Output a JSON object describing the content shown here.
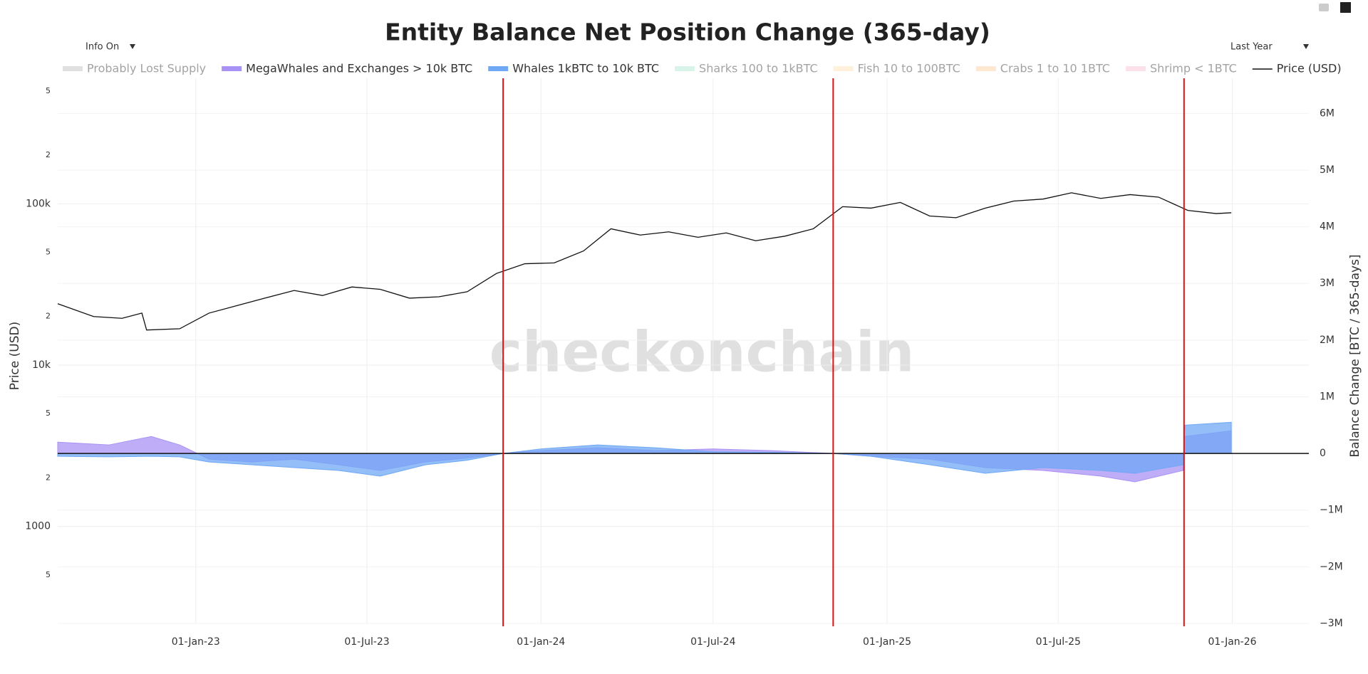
{
  "chart_data": {
    "type": "line",
    "title": "Entity Balance Net Position Change (365-day)",
    "watermark": "checkonchain",
    "info_dropdown": "Info On",
    "range_dropdown": "Last Year",
    "y_label": "Price (USD)",
    "y2_label": "Balance Change [BTC / 365-days]",
    "ylog": true,
    "ylim": [
      250,
      600000
    ],
    "yticks": [
      {
        "value": 500000,
        "label": "5"
      },
      {
        "value": 200000,
        "label": "2"
      },
      {
        "value": 100000,
        "label": "100k"
      },
      {
        "value": 50000,
        "label": "5"
      },
      {
        "value": 20000,
        "label": "2"
      },
      {
        "value": 10000,
        "label": "10k"
      },
      {
        "value": 5000,
        "label": "5"
      },
      {
        "value": 2000,
        "label": "2"
      },
      1000,
      {
        "value": 500,
        "label": "5"
      }
    ],
    "y2lim": [
      -3000000,
      6620000
    ],
    "y2ticks": [
      {
        "value": 6000000,
        "label": "6M"
      },
      {
        "value": 5000000,
        "label": "5M"
      },
      {
        "value": 4000000,
        "label": "4M"
      },
      {
        "value": 3000000,
        "label": "3M"
      },
      {
        "value": 2000000,
        "label": "2M"
      },
      {
        "value": 1000000,
        "label": "1M"
      },
      0,
      {
        "value": -1000000,
        "label": "−1M"
      },
      {
        "value": -2000000,
        "label": "−2M"
      },
      {
        "value": -3000000,
        "label": "−3M"
      }
    ],
    "xlim": [
      "2022-08-08",
      "2026-03-23"
    ],
    "xticks": [
      {
        "value": "2023-01-01",
        "label": "01-Jan-23"
      },
      {
        "value": "2023-07-01",
        "label": "01-Jul-23"
      },
      {
        "value": "2024-01-01",
        "label": "01-Jan-24"
      },
      {
        "value": "2024-07-01",
        "label": "01-Jul-24"
      },
      {
        "value": "2025-01-01",
        "label": "01-Jan-25"
      },
      {
        "value": "2025-07-01",
        "label": "01-Jul-25"
      },
      {
        "value": "2026-01-01",
        "label": "01-Jan-26"
      }
    ],
    "grid": true,
    "vlines": [
      "2023-11-22",
      "2024-11-05",
      "2025-11-11"
    ],
    "vline_color": "#e01010",
    "series": [
      {
        "name": "Probably Lost Supply",
        "color": "#bbbbbb",
        "visible": false
      },
      {
        "name": "MegaWhales and Exchanges > 10k BTC",
        "color": "#a992f5",
        "kind": "area",
        "axis": "y2",
        "x": [
          "2022-08-08",
          "2022-10-01",
          "2022-11-15",
          "2022-12-15",
          "2023-01-15",
          "2023-03-01",
          "2023-04-15",
          "2023-06-01",
          "2023-07-15",
          "2023-09-01",
          "2023-10-15",
          "2023-11-22",
          "2024-01-01",
          "2024-03-01",
          "2024-05-01",
          "2024-07-01",
          "2024-09-01",
          "2024-11-05",
          "2024-12-15",
          "2025-02-15",
          "2025-04-15",
          "2025-06-15",
          "2025-08-15",
          "2025-09-20",
          "2025-11-10",
          "2025-11-12",
          "2025-12-31"
        ],
        "values": [
          200000,
          150000,
          300000,
          150000,
          -100000,
          -150000,
          -100000,
          -200000,
          -300000,
          -150000,
          -80000,
          0,
          50000,
          100000,
          50000,
          80000,
          50000,
          0,
          -50000,
          -100000,
          -250000,
          -300000,
          -400000,
          -500000,
          -300000,
          300000,
          400000
        ]
      },
      {
        "name": "Whales 1kBTC to 10k BTC",
        "color": "#6fa8f5",
        "kind": "area",
        "axis": "y2",
        "x": [
          "2022-08-08",
          "2022-10-01",
          "2022-11-15",
          "2022-12-15",
          "2023-01-15",
          "2023-03-01",
          "2023-04-15",
          "2023-06-01",
          "2023-07-15",
          "2023-09-01",
          "2023-10-15",
          "2023-11-22",
          "2024-01-01",
          "2024-03-01",
          "2024-05-01",
          "2024-07-01",
          "2024-09-01",
          "2024-11-05",
          "2024-12-15",
          "2025-02-15",
          "2025-04-15",
          "2025-06-15",
          "2025-08-15",
          "2025-09-20",
          "2025-11-10",
          "2025-11-12",
          "2025-12-31"
        ],
        "values": [
          -50000,
          -60000,
          -50000,
          -60000,
          -150000,
          -200000,
          -250000,
          -300000,
          -400000,
          -200000,
          -120000,
          0,
          80000,
          150000,
          100000,
          30000,
          20000,
          0,
          -50000,
          -200000,
          -350000,
          -250000,
          -300000,
          -350000,
          -200000,
          500000,
          550000
        ]
      },
      {
        "name": "Sharks 100 to 1kBTC",
        "color": "#a8e6cf",
        "visible": false
      },
      {
        "name": "Fish 10 to 100BTC",
        "color": "#ffe0b2",
        "visible": false
      },
      {
        "name": "Crabs 1 to 10 1BTC",
        "color": "#ffcc99",
        "visible": false
      },
      {
        "name": "Shrimp < 1BTC",
        "color": "#f8bbd0",
        "visible": false
      },
      {
        "name": "Price (USD)",
        "color": "#111111",
        "kind": "line",
        "axis": "y",
        "x": [
          "2022-08-08",
          "2022-09-15",
          "2022-10-15",
          "2022-11-05",
          "2022-11-10",
          "2022-12-15",
          "2023-01-15",
          "2023-02-15",
          "2023-03-15",
          "2023-04-15",
          "2023-05-15",
          "2023-06-15",
          "2023-07-15",
          "2023-08-15",
          "2023-09-15",
          "2023-10-15",
          "2023-11-15",
          "2023-12-15",
          "2024-01-15",
          "2024-02-15",
          "2024-03-15",
          "2024-04-15",
          "2024-05-15",
          "2024-06-15",
          "2024-07-15",
          "2024-08-15",
          "2024-09-15",
          "2024-10-15",
          "2024-11-15",
          "2024-12-15",
          "2025-01-15",
          "2025-02-15",
          "2025-03-15",
          "2025-04-15",
          "2025-05-15",
          "2025-06-15",
          "2025-07-15",
          "2025-08-15",
          "2025-09-15",
          "2025-10-15",
          "2025-11-15",
          "2025-12-15",
          "2025-12-31"
        ],
        "values": [
          24000,
          20000,
          19500,
          21000,
          16500,
          16800,
          21000,
          23500,
          26000,
          29000,
          27000,
          30500,
          29500,
          26000,
          26500,
          28500,
          37000,
          42500,
          43000,
          51000,
          70000,
          64000,
          67000,
          62000,
          66000,
          59000,
          63000,
          70000,
          96000,
          94000,
          102000,
          84000,
          82000,
          94000,
          104000,
          107000,
          117000,
          108000,
          114000,
          110000,
          91000,
          87000,
          88000
        ]
      }
    ]
  }
}
